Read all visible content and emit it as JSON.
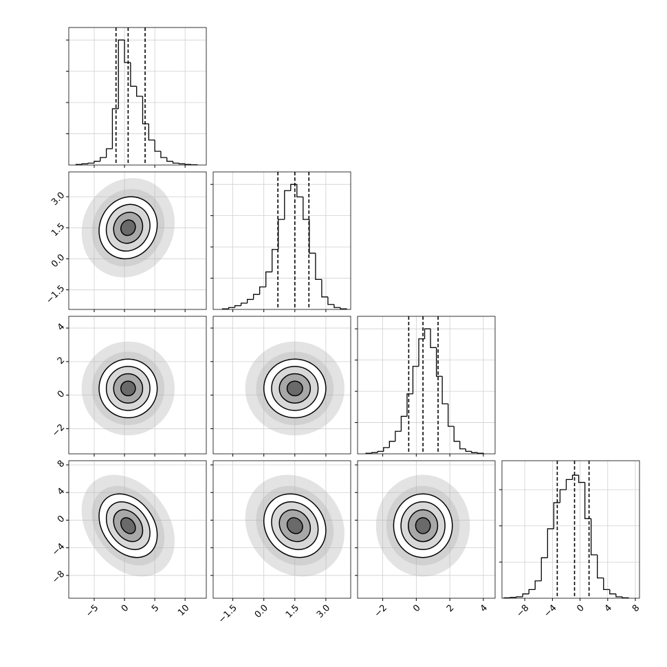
{
  "chart_data": {
    "type": "corner",
    "grid": true,
    "color": "#000000",
    "cloud_color": "#b0b0b0",
    "contour_levels": [
      0.5,
      1,
      1.5,
      2
    ],
    "dimensions": [
      {
        "lim": [
          -9.2,
          13.5
        ],
        "ticks": [
          {
            "value": -5,
            "label": "−5"
          },
          0,
          5,
          10
        ],
        "bins": [
          -8,
          -7,
          -6,
          -5,
          -4,
          -3,
          -2,
          -1,
          0,
          1,
          2,
          3,
          4,
          5,
          6,
          7,
          8,
          9,
          10,
          11,
          12
        ],
        "counts": [
          0.5,
          1,
          1.5,
          3,
          6,
          13,
          45,
          100,
          82,
          63,
          55,
          33,
          20,
          11,
          6,
          3,
          1.5,
          1,
          0.5,
          0.2
        ],
        "hist_ylim": [
          0,
          110
        ],
        "hist_yticks": [
          25,
          50,
          75,
          100
        ],
        "quantiles": [
          -1.4,
          0.6,
          3.4
        ]
      },
      {
        "lim": [
          -2.45,
          4.2
        ],
        "ticks": [
          {
            "value": -1.5,
            "label": "−1.5"
          },
          {
            "value": 0,
            "label": "0.0"
          },
          1.5,
          {
            "value": 3,
            "label": "3.0"
          }
        ],
        "bins": [
          -2.0,
          -1.7,
          -1.4,
          -1.1,
          -0.8,
          -0.5,
          -0.2,
          0.1,
          0.4,
          0.7,
          1.0,
          1.3,
          1.6,
          1.9,
          2.2,
          2.5,
          2.8,
          3.1,
          3.4,
          3.7,
          4.0
        ],
        "counts": [
          0.5,
          1.5,
          3,
          5,
          8,
          12,
          18,
          30,
          48,
          72,
          95,
          100,
          90,
          72,
          45,
          24,
          10,
          4,
          1.5,
          0.5
        ],
        "hist_ylim": [
          0,
          110
        ],
        "hist_yticks": [
          25,
          50,
          75,
          100
        ],
        "quantiles": [
          0.68,
          1.5,
          2.18
        ]
      },
      {
        "lim": [
          -3.5,
          4.7
        ],
        "ticks": [
          {
            "value": -2,
            "label": "−2"
          },
          0,
          2,
          4
        ],
        "bins": [
          -3.0,
          -2.65,
          -2.3,
          -1.95,
          -1.6,
          -1.25,
          -0.9,
          -0.55,
          -0.2,
          0.15,
          0.5,
          0.85,
          1.2,
          1.55,
          1.9,
          2.25,
          2.6,
          2.95,
          3.3,
          3.65,
          4.0
        ],
        "counts": [
          0.5,
          1,
          2,
          5,
          10,
          18,
          30,
          48,
          70,
          92,
          100,
          85,
          62,
          40,
          22,
          10,
          4,
          2,
          1,
          0.5
        ],
        "hist_ylim": [
          0,
          110
        ],
        "hist_yticks": [
          25,
          50,
          75,
          100
        ],
        "quantiles": [
          -0.45,
          0.4,
          1.3
        ]
      },
      {
        "lim": [
          -11.3,
          8.6
        ],
        "ticks": [
          {
            "value": -8,
            "label": "−8"
          },
          {
            "value": -4,
            "label": "−4"
          },
          0,
          4,
          8
        ],
        "bins": [
          -11,
          -10.1,
          -9.2,
          -8.3,
          -7.4,
          -6.5,
          -5.6,
          -4.7,
          -3.8,
          -2.9,
          -2.0,
          -1.1,
          -0.2,
          0.7,
          1.6,
          2.5,
          3.4,
          4.3,
          5.2,
          6.1,
          7.0
        ],
        "counts": [
          0.3,
          0.6,
          1,
          3,
          6,
          12,
          28,
          48,
          66,
          75,
          82,
          85,
          80,
          55,
          30,
          14,
          6,
          3,
          1,
          0.3
        ],
        "hist_ylim": [
          0,
          95
        ],
        "hist_yticks": [
          25,
          50,
          75
        ],
        "quantiles": [
          -3.3,
          -0.8,
          1.3
        ]
      }
    ],
    "correlations": [
      [
        0.1
      ],
      [
        0,
        0
      ],
      [
        -0.3,
        -0.15,
        0
      ]
    ]
  }
}
